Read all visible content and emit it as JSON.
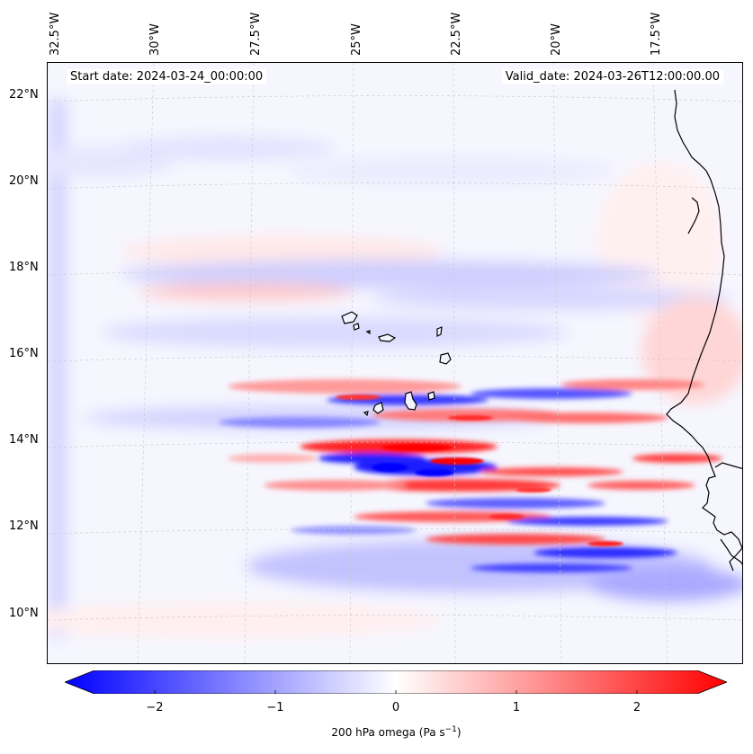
{
  "map": {
    "start_date": "Start date: 2024-03-24_00:00:00",
    "valid_date": "Valid_date: 2024-03-26T12:00:00.00",
    "lon_labels": [
      "32.5°W",
      "30°W",
      "27.5°W",
      "25°W",
      "22.5°W",
      "20°W",
      "17.5°W"
    ],
    "lat_labels": [
      "22°N",
      "20°N",
      "18°N",
      "16°N",
      "14°N",
      "12°N",
      "10°N"
    ],
    "field": "200 hPa omega",
    "colors": {
      "negative": "#0000ff",
      "zero": "#ffffff",
      "positive": "#ff0000",
      "coast": "#000000"
    }
  },
  "colorbar": {
    "title": "200 hPa omega (Pa s",
    "title_sup": "−1",
    "title_end": ")",
    "ticks": [
      "−2",
      "−1",
      "0",
      "1",
      "2"
    ],
    "range": [
      -2.75,
      2.75
    ]
  }
}
